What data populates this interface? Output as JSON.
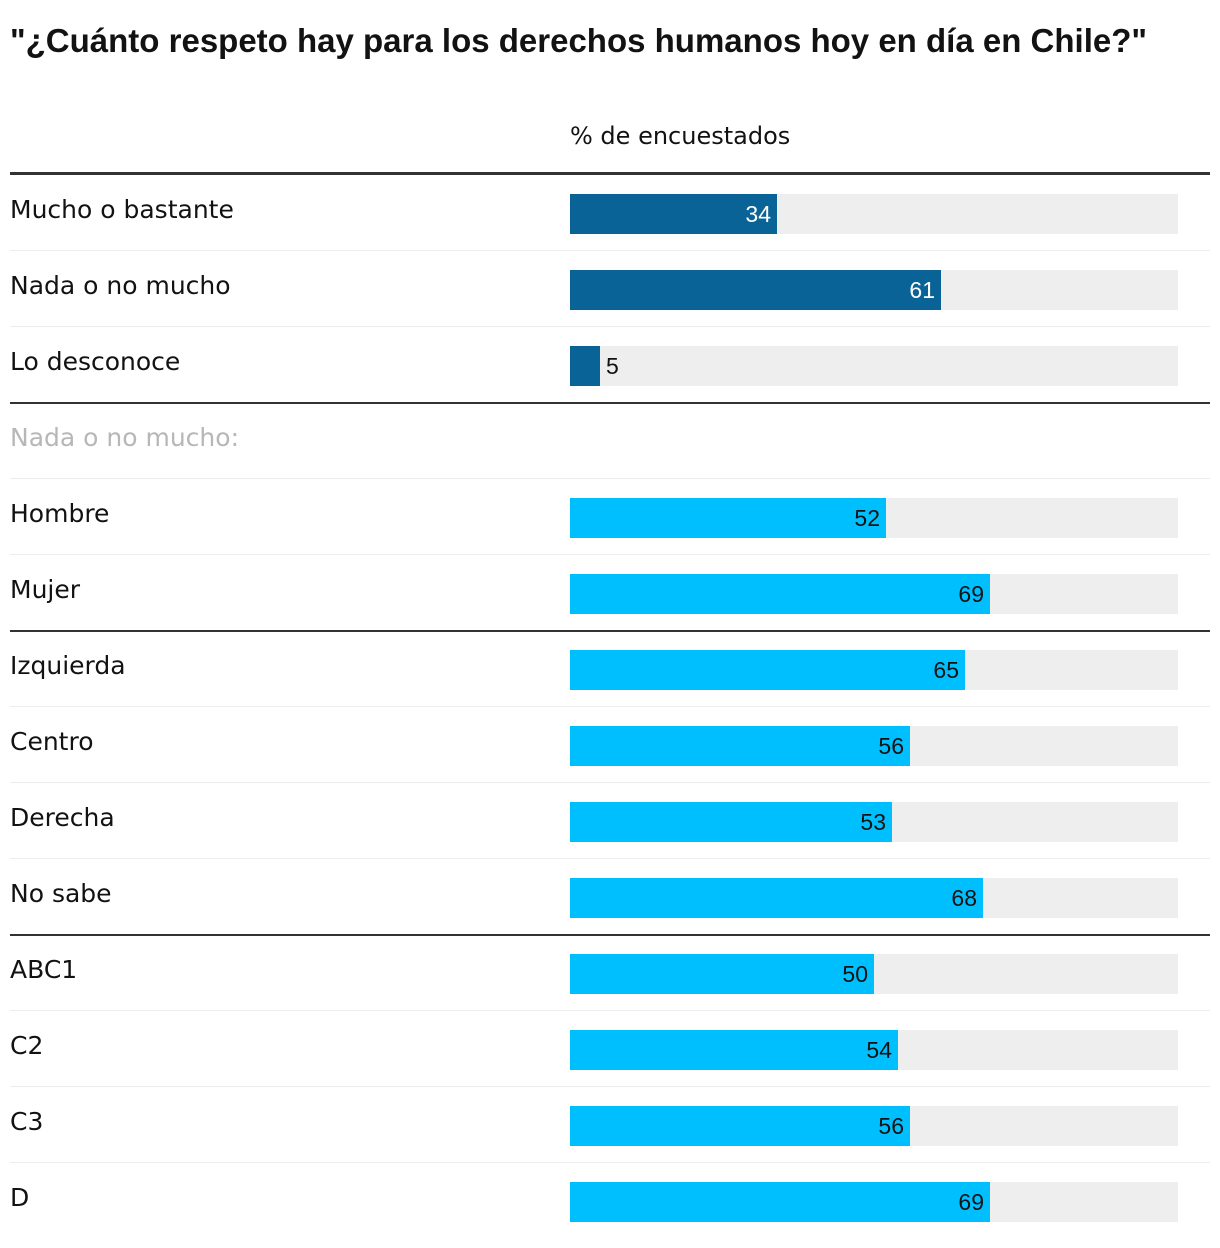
{
  "chart_data": {
    "type": "bar",
    "title": "\"¿Cuánto respeto hay para los derechos humanos hoy en día en Chile?\"",
    "column_header": "% de encuestados",
    "xlim": [
      0,
      100
    ],
    "colors": {
      "dark": "#0a6396",
      "light": "#00bfff",
      "track": "#eeeeee"
    },
    "groups": [
      {
        "label": "",
        "color": "dark",
        "rows": [
          {
            "label": "Mucho o bastante",
            "value": 34
          },
          {
            "label": "Nada o no mucho",
            "value": 61
          },
          {
            "label": "Lo desconoce",
            "value": 5
          }
        ]
      },
      {
        "label": "Nada o no mucho:",
        "color": "light",
        "rows": [
          {
            "label": "Hombre",
            "value": 52
          },
          {
            "label": "Mujer",
            "value": 69
          }
        ]
      },
      {
        "label": "",
        "color": "light",
        "rows": [
          {
            "label": "Izquierda",
            "value": 65
          },
          {
            "label": "Centro",
            "value": 56
          },
          {
            "label": "Derecha",
            "value": 53
          },
          {
            "label": "No sabe",
            "value": 68
          }
        ]
      },
      {
        "label": "",
        "color": "light",
        "rows": [
          {
            "label": "ABC1",
            "value": 50
          },
          {
            "label": "C2",
            "value": 54
          },
          {
            "label": "C3",
            "value": 56
          },
          {
            "label": "D",
            "value": 69
          }
        ]
      }
    ]
  }
}
